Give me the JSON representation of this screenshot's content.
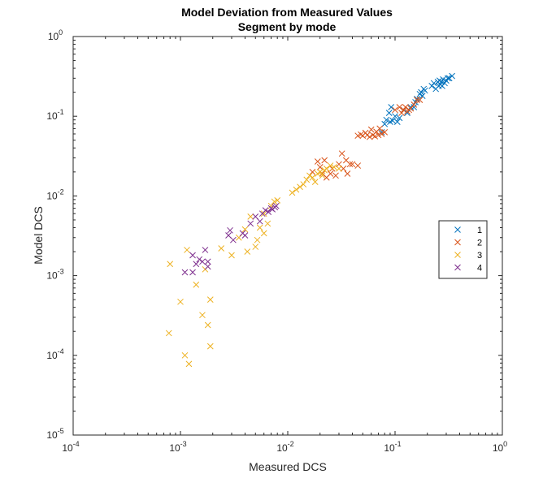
{
  "chart_data": {
    "type": "scatter",
    "title": "Model Deviation from Measured Values",
    "subtitle": "Segment by mode",
    "xlabel": "Measured DCS",
    "ylabel": "Model DCS",
    "xscale": "log",
    "yscale": "log",
    "xlim": [
      0.0001,
      1
    ],
    "ylim": [
      1e-05,
      1
    ],
    "grid": false,
    "legend_position": "right",
    "marker": "x",
    "x_ticks": [
      {
        "base": "10",
        "exp": "-4",
        "value": 0.0001
      },
      {
        "base": "10",
        "exp": "-3",
        "value": 0.001
      },
      {
        "base": "10",
        "exp": "-2",
        "value": 0.01
      },
      {
        "base": "10",
        "exp": "-1",
        "value": 0.1
      },
      {
        "base": "10",
        "exp": "0",
        "value": 1
      }
    ],
    "y_ticks": [
      {
        "base": "10",
        "exp": "-5",
        "value": 1e-05
      },
      {
        "base": "10",
        "exp": "-4",
        "value": 0.0001
      },
      {
        "base": "10",
        "exp": "-3",
        "value": 0.001
      },
      {
        "base": "10",
        "exp": "-2",
        "value": 0.01
      },
      {
        "base": "10",
        "exp": "-1",
        "value": 0.1
      },
      {
        "base": "10",
        "exp": "0",
        "value": 1
      }
    ],
    "series": [
      {
        "name": "1",
        "color": "#0072BD",
        "points": [
          [
            0.075,
            0.063
          ],
          [
            0.08,
            0.08
          ],
          [
            0.083,
            0.09
          ],
          [
            0.088,
            0.11
          ],
          [
            0.09,
            0.085
          ],
          [
            0.092,
            0.13
          ],
          [
            0.095,
            0.088
          ],
          [
            0.1,
            0.1
          ],
          [
            0.105,
            0.085
          ],
          [
            0.11,
            0.095
          ],
          [
            0.12,
            0.12
          ],
          [
            0.13,
            0.11
          ],
          [
            0.14,
            0.13
          ],
          [
            0.15,
            0.13
          ],
          [
            0.155,
            0.15
          ],
          [
            0.16,
            0.165
          ],
          [
            0.17,
            0.19
          ],
          [
            0.175,
            0.2
          ],
          [
            0.18,
            0.18
          ],
          [
            0.185,
            0.22
          ],
          [
            0.19,
            0.21
          ],
          [
            0.22,
            0.24
          ],
          [
            0.23,
            0.26
          ],
          [
            0.24,
            0.22
          ],
          [
            0.25,
            0.27
          ],
          [
            0.255,
            0.24
          ],
          [
            0.26,
            0.28
          ],
          [
            0.265,
            0.25
          ],
          [
            0.27,
            0.27
          ],
          [
            0.275,
            0.24
          ],
          [
            0.28,
            0.29
          ],
          [
            0.29,
            0.26
          ],
          [
            0.3,
            0.28
          ],
          [
            0.31,
            0.3
          ],
          [
            0.32,
            0.3
          ],
          [
            0.34,
            0.32
          ]
        ]
      },
      {
        "name": "2",
        "color": "#D95319",
        "points": [
          [
            0.017,
            0.02
          ],
          [
            0.019,
            0.027
          ],
          [
            0.02,
            0.023
          ],
          [
            0.021,
            0.019
          ],
          [
            0.022,
            0.028
          ],
          [
            0.023,
            0.017
          ],
          [
            0.025,
            0.019
          ],
          [
            0.026,
            0.022
          ],
          [
            0.028,
            0.018
          ],
          [
            0.03,
            0.025
          ],
          [
            0.032,
            0.034
          ],
          [
            0.033,
            0.022
          ],
          [
            0.035,
            0.028
          ],
          [
            0.036,
            0.019
          ],
          [
            0.038,
            0.025
          ],
          [
            0.04,
            0.025
          ],
          [
            0.045,
            0.024
          ],
          [
            0.045,
            0.057
          ],
          [
            0.048,
            0.059
          ],
          [
            0.05,
            0.057
          ],
          [
            0.053,
            0.062
          ],
          [
            0.055,
            0.058
          ],
          [
            0.058,
            0.055
          ],
          [
            0.06,
            0.068
          ],
          [
            0.062,
            0.058
          ],
          [
            0.065,
            0.056
          ],
          [
            0.067,
            0.064
          ],
          [
            0.07,
            0.058
          ],
          [
            0.072,
            0.07
          ],
          [
            0.075,
            0.06
          ],
          [
            0.08,
            0.063
          ],
          [
            0.1,
            0.12
          ],
          [
            0.11,
            0.13
          ],
          [
            0.115,
            0.11
          ],
          [
            0.12,
            0.12
          ],
          [
            0.125,
            0.13
          ],
          [
            0.13,
            0.115
          ],
          [
            0.135,
            0.12
          ],
          [
            0.14,
            0.125
          ],
          [
            0.15,
            0.14
          ],
          [
            0.16,
            0.16
          ],
          [
            0.17,
            0.16
          ]
        ]
      },
      {
        "name": "3",
        "color": "#EDB120",
        "points": [
          [
            0.00078,
            0.00019
          ],
          [
            0.0008,
            0.0014
          ],
          [
            0.001,
            0.00047
          ],
          [
            0.0011,
            0.0001
          ],
          [
            0.00115,
            0.0021
          ],
          [
            0.0012,
            7.8e-05
          ],
          [
            0.0014,
            0.00077
          ],
          [
            0.0016,
            0.00032
          ],
          [
            0.0017,
            0.0012
          ],
          [
            0.0018,
            0.00024
          ],
          [
            0.0019,
            0.0005
          ],
          [
            0.0019,
            0.00013
          ],
          [
            0.0024,
            0.0022
          ],
          [
            0.003,
            0.0018
          ],
          [
            0.0035,
            0.003
          ],
          [
            0.004,
            0.0038
          ],
          [
            0.0042,
            0.002
          ],
          [
            0.0045,
            0.0055
          ],
          [
            0.005,
            0.0023
          ],
          [
            0.0052,
            0.0028
          ],
          [
            0.0055,
            0.004
          ],
          [
            0.006,
            0.0034
          ],
          [
            0.006,
            0.006
          ],
          [
            0.0065,
            0.0045
          ],
          [
            0.007,
            0.0075
          ],
          [
            0.0075,
            0.0085
          ],
          [
            0.008,
            0.0088
          ],
          [
            0.011,
            0.011
          ],
          [
            0.012,
            0.012
          ],
          [
            0.013,
            0.013
          ],
          [
            0.014,
            0.014
          ],
          [
            0.015,
            0.016
          ],
          [
            0.016,
            0.018
          ],
          [
            0.017,
            0.017
          ],
          [
            0.018,
            0.015
          ],
          [
            0.019,
            0.019
          ],
          [
            0.02,
            0.02
          ],
          [
            0.021,
            0.018
          ],
          [
            0.022,
            0.021
          ],
          [
            0.023,
            0.022
          ],
          [
            0.025,
            0.024
          ],
          [
            0.027,
            0.023
          ],
          [
            0.03,
            0.022
          ]
        ]
      },
      {
        "name": "4",
        "color": "#7E2F8E",
        "points": [
          [
            0.0011,
            0.0011
          ],
          [
            0.0013,
            0.0018
          ],
          [
            0.0013,
            0.0011
          ],
          [
            0.0014,
            0.0014
          ],
          [
            0.0015,
            0.0016
          ],
          [
            0.0016,
            0.0015
          ],
          [
            0.0017,
            0.0021
          ],
          [
            0.0018,
            0.0015
          ],
          [
            0.0018,
            0.0013
          ],
          [
            0.0028,
            0.0032
          ],
          [
            0.0029,
            0.0037
          ],
          [
            0.0031,
            0.0028
          ],
          [
            0.0038,
            0.0034
          ],
          [
            0.004,
            0.0032
          ],
          [
            0.0045,
            0.0045
          ],
          [
            0.005,
            0.0055
          ],
          [
            0.0055,
            0.0048
          ],
          [
            0.0058,
            0.006
          ],
          [
            0.0062,
            0.0066
          ],
          [
            0.0066,
            0.0063
          ],
          [
            0.007,
            0.007
          ],
          [
            0.0072,
            0.0068
          ],
          [
            0.0076,
            0.0072
          ],
          [
            0.0078,
            0.0075
          ]
        ]
      }
    ]
  }
}
